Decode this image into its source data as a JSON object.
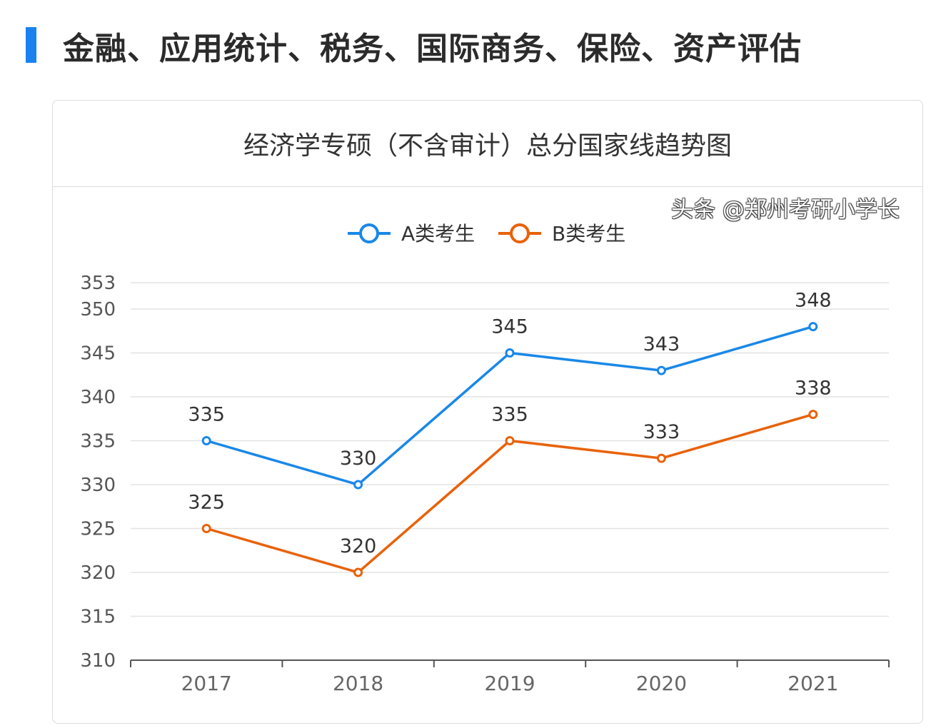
{
  "header": {
    "title": "金融、应用统计、税务、国际商务、保险、资产评估",
    "accent_color": "#1a82f0"
  },
  "chart_data": {
    "type": "line",
    "title": "经济学专硕（不含审计）总分国家线趋势图",
    "categories": [
      "2017",
      "2018",
      "2019",
      "2020",
      "2021"
    ],
    "series": [
      {
        "name": "A类考生",
        "values": [
          335,
          330,
          345,
          343,
          348
        ],
        "color": "#1a88e8"
      },
      {
        "name": "B类考生",
        "values": [
          325,
          320,
          335,
          333,
          338
        ],
        "color": "#e8620a"
      }
    ],
    "yticks": [
      310,
      315,
      320,
      325,
      330,
      335,
      340,
      345,
      350,
      353
    ],
    "ylim": [
      310,
      353
    ],
    "grid": true,
    "legend": "top-center",
    "xlabel": "",
    "ylabel": ""
  },
  "watermark": "头条 @郑州考研小学长"
}
